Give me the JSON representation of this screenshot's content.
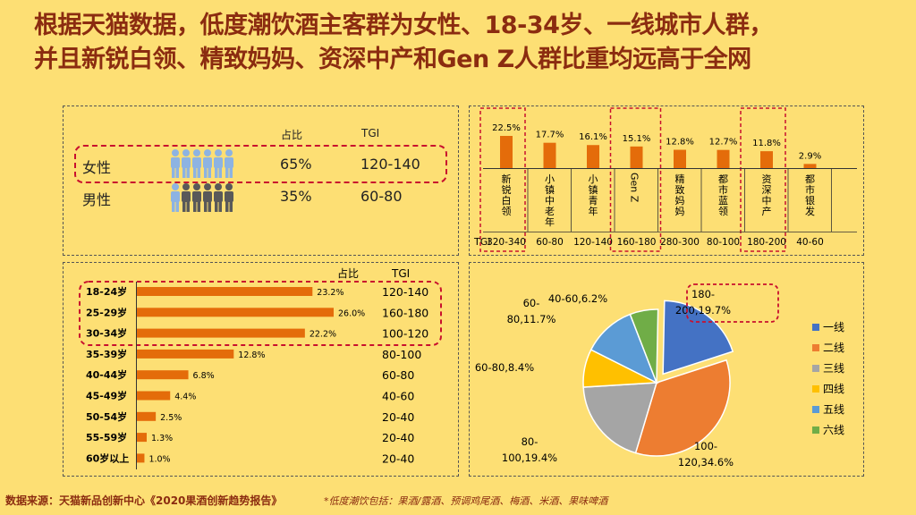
{
  "title_line1": "根据天猫数据，低度潮饮酒主客群为女性、18-34岁、一线城市人群，",
  "title_line2": "并且新锐白领、精致妈妈、资深中产和Gen Z人群比重均远高于全网",
  "gender": {
    "header_share": "占比",
    "header_tgi": "TGI",
    "rows": [
      {
        "label": "女性",
        "share": "65%",
        "tgi": "120-140"
      },
      {
        "label": "男性",
        "share": "35%",
        "tgi": "60-80"
      }
    ]
  },
  "colors": {
    "bar": "#e46c0a",
    "pie": [
      "#4472c4",
      "#ed7d31",
      "#a5a5a5",
      "#ffc000",
      "#5b9bd5",
      "#70ad47"
    ],
    "highlight": "#c8102e"
  },
  "chart_data": [
    {
      "type": "bar",
      "title": "",
      "categories": [
        "新锐白领",
        "小镇中老年",
        "小镇青年",
        "Gen Z",
        "精致妈妈",
        "都市蓝领",
        "资深中产",
        "都市银发"
      ],
      "values": [
        22.5,
        17.7,
        16.1,
        15.1,
        12.8,
        12.7,
        11.8,
        2.9
      ],
      "value_labels": [
        "22.5%",
        "17.7%",
        "16.1%",
        "15.1%",
        "12.8%",
        "12.7%",
        "11.8%",
        "2.9%"
      ],
      "tgi_label": "TGI",
      "tgi": [
        "320-340",
        "60-80",
        "120-140",
        "160-180",
        "280-300",
        "80-100",
        "180-200",
        "40-60"
      ]
    },
    {
      "type": "bar",
      "orientation": "horizontal",
      "header_share": "占比",
      "header_tgi": "TGI",
      "categories": [
        "18-24岁",
        "25-29岁",
        "30-34岁",
        "35-39岁",
        "40-44岁",
        "45-49岁",
        "50-54岁",
        "55-59岁",
        "60岁以上"
      ],
      "values": [
        23.2,
        26.0,
        22.2,
        12.8,
        6.8,
        4.4,
        2.5,
        1.3,
        1.0
      ],
      "value_labels": [
        "23.2%",
        "26.0%",
        "22.2%",
        "12.8%",
        "6.8%",
        "4.4%",
        "2.5%",
        "1.3%",
        "1.0%"
      ],
      "tgi": [
        "120-140",
        "160-180",
        "100-120",
        "80-100",
        "60-80",
        "40-60",
        "20-40",
        "20-40",
        "20-40"
      ]
    },
    {
      "type": "pie",
      "slices": [
        {
          "name": "一线",
          "value": 19.7,
          "label": [
            "180-",
            "200,19.7%"
          ]
        },
        {
          "name": "二线",
          "value": 34.6,
          "label": [
            "100-",
            "120,34.6%"
          ]
        },
        {
          "name": "三线",
          "value": 19.4,
          "label": [
            "80-",
            "100,19.4%"
          ]
        },
        {
          "name": "四线",
          "value": 8.4,
          "label": [
            "60-80,8.4%"
          ]
        },
        {
          "name": "五线",
          "value": 11.7,
          "label": [
            "60-",
            "80,11.7%"
          ]
        },
        {
          "name": "六线",
          "value": 6.2,
          "label": [
            "40-60,6.2%"
          ]
        }
      ],
      "legend": [
        "一线",
        "二线",
        "三线",
        "四线",
        "五线",
        "六线"
      ]
    }
  ],
  "footer": {
    "source": "数据来源：天猫新品创新中心《2020果酒创新趋势报告》",
    "note": "*低度潮饮包括：果酒/露酒、预调鸡尾酒、梅酒、米酒、果味啤酒"
  }
}
